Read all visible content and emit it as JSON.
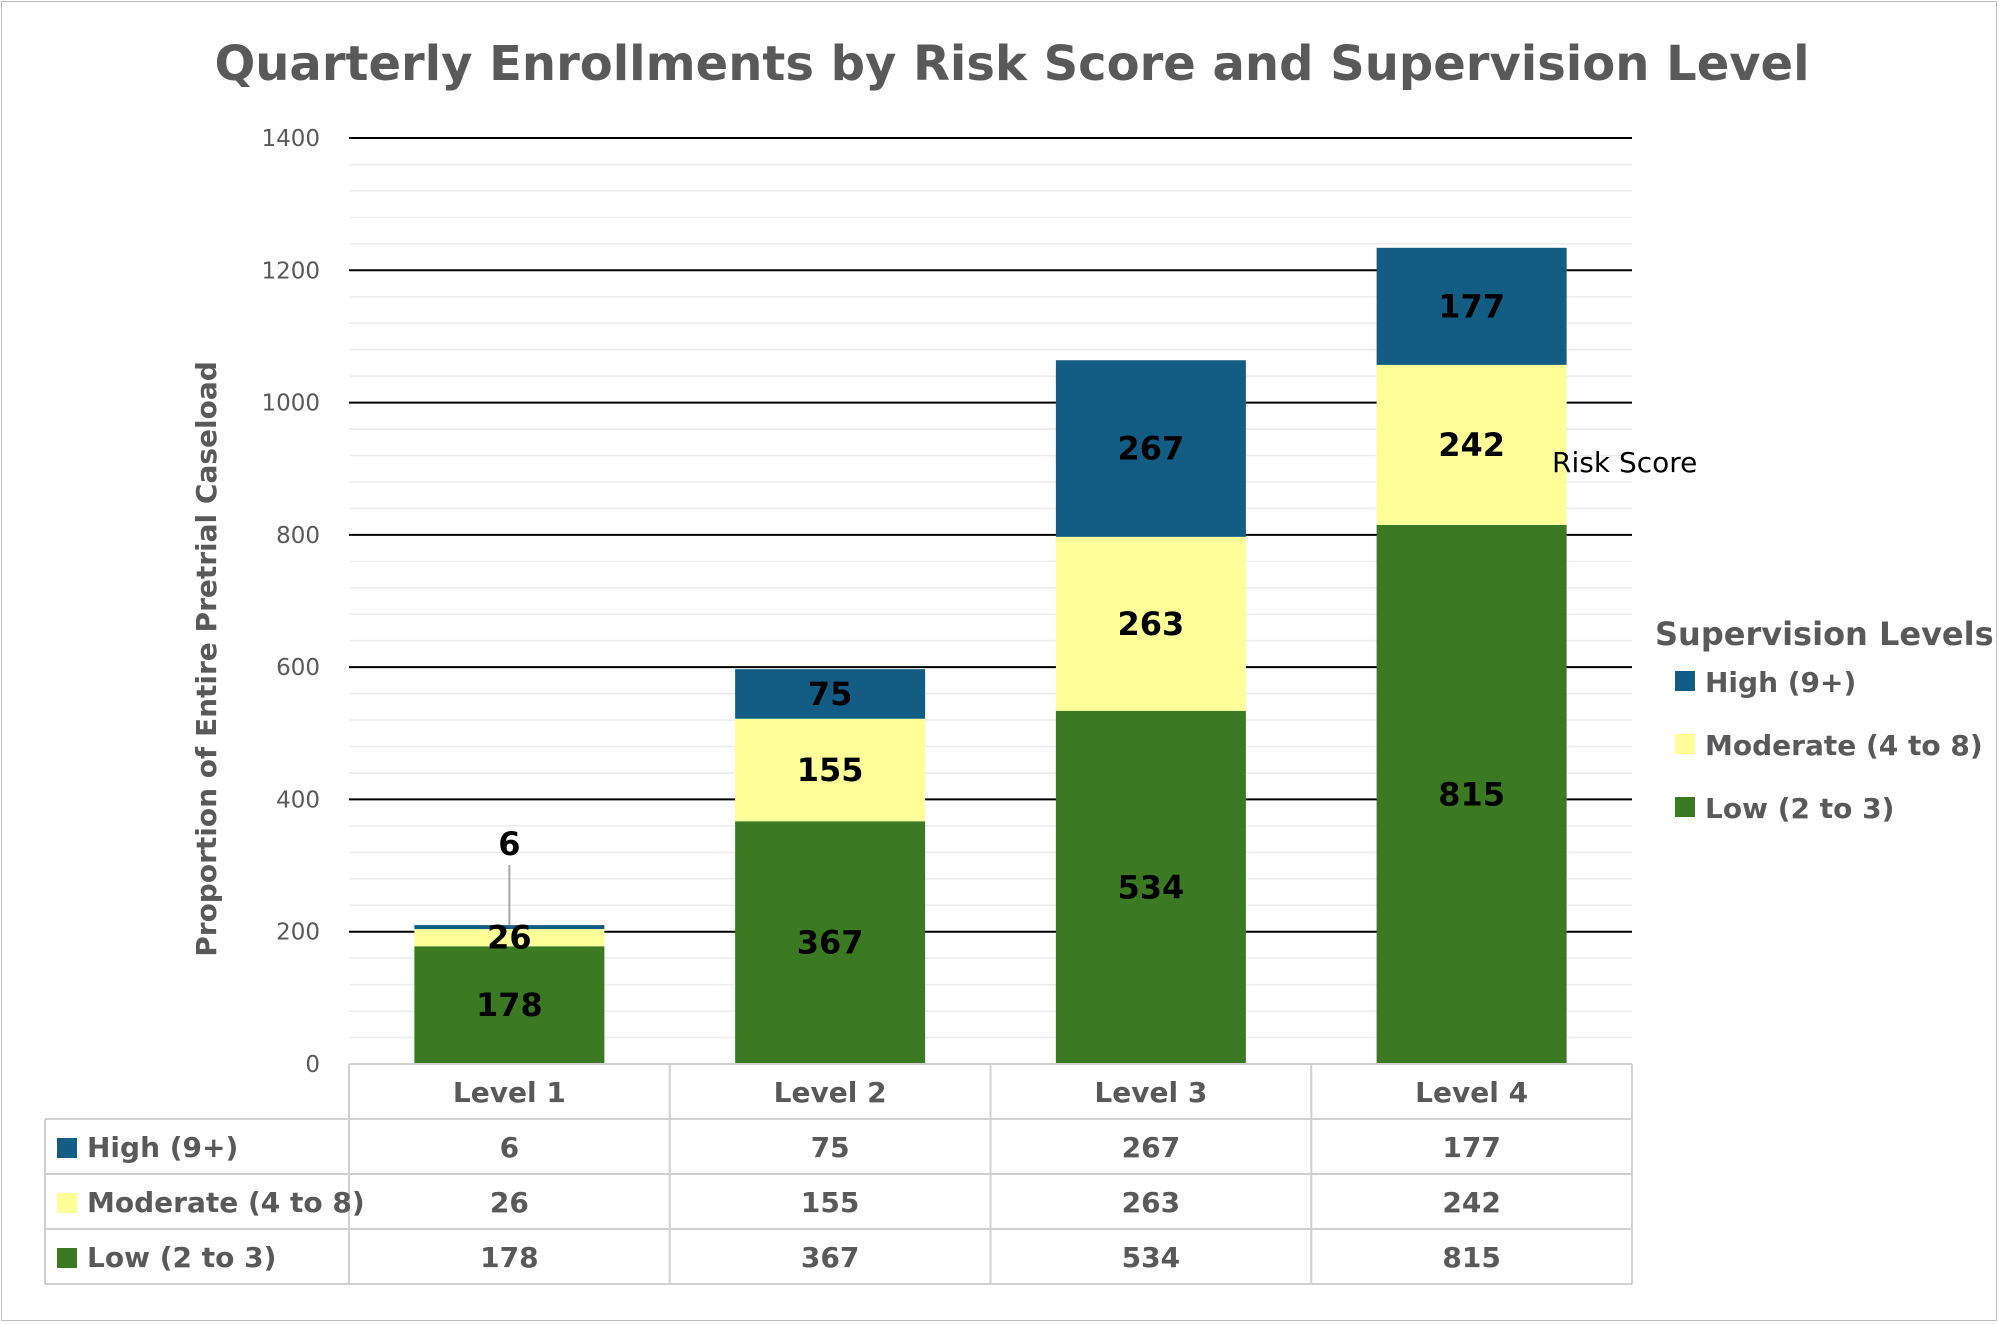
{
  "chart_data": {
    "type": "bar",
    "stacked": true,
    "title": "Quarterly Enrollments by Risk Score and Supervision Level",
    "ylabel": "Proportion of Entire Pretrial Caseload",
    "xlabel": "",
    "ylim": [
      0,
      1400
    ],
    "y_ticks": [
      0,
      200,
      400,
      600,
      800,
      1000,
      1200,
      1400
    ],
    "minor_step": 40,
    "grid": true,
    "categories": [
      "Level 1",
      "Level 2",
      "Level 3",
      "Level 4"
    ],
    "series": [
      {
        "name": "Low (2 to 3)",
        "color": "#3b7a22",
        "values": [
          178,
          367,
          534,
          815
        ]
      },
      {
        "name": "Moderate (4 to 8)",
        "color": "#ffff99",
        "values": [
          26,
          155,
          263,
          242
        ]
      },
      {
        "name": "High (9+)",
        "color": "#135d85",
        "values": [
          6,
          75,
          267,
          177
        ]
      }
    ],
    "legend": {
      "title": "Supervision Levels",
      "placement": "right",
      "order": [
        "High (9+)",
        "Moderate (4 to 8)",
        "Low (2 to 3)"
      ]
    },
    "annotations": [
      "Risk Score"
    ],
    "data_table": {
      "row_order": [
        "High (9+)",
        "Moderate (4 to 8)",
        "Low (2 to 3)"
      ]
    }
  }
}
